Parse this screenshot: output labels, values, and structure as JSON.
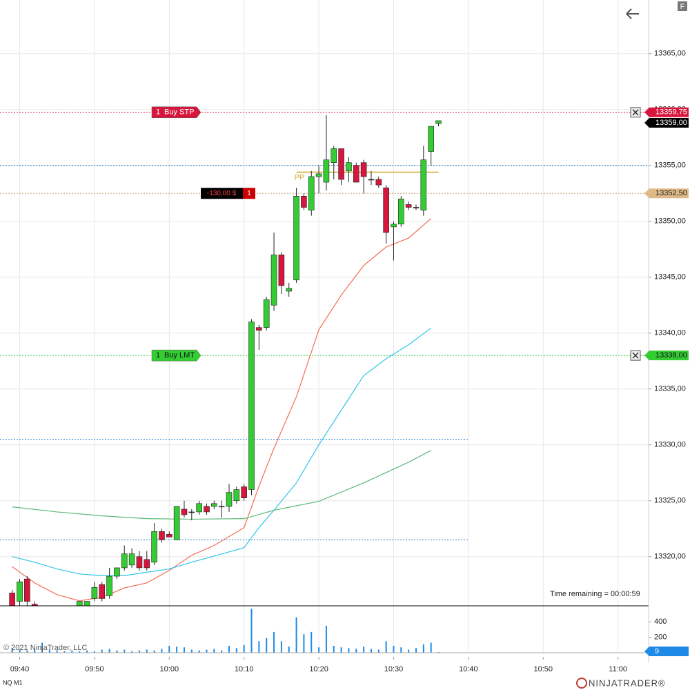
{
  "chart_data": {
    "type": "candlestick",
    "instrument": "NQ M1",
    "copyright": "© 2021 NinjaTrader, LLC",
    "time_remaining": "Time remaining = 00:00:59",
    "logo": "NINJATRADER®",
    "button": "F",
    "categories": [
      "09:39",
      "09:40",
      "09:41",
      "09:42",
      "09:43",
      "09:44",
      "09:45",
      "09:46",
      "09:47",
      "09:48",
      "09:49",
      "09:50",
      "09:51",
      "09:52",
      "09:53",
      "09:54",
      "09:55",
      "09:56",
      "09:57",
      "09:58",
      "09:59",
      "10:00",
      "10:01",
      "10:02",
      "10:03",
      "10:04",
      "10:05",
      "10:06",
      "10:07",
      "10:08",
      "10:09",
      "10:10",
      "10:11",
      "10:12",
      "10:13",
      "10:14",
      "10:15",
      "10:16",
      "10:17",
      "10:18",
      "10:19",
      "10:20",
      "10:21",
      "10:22",
      "10:23",
      "10:24",
      "10:25",
      "10:26",
      "10:27",
      "10:28",
      "10:29",
      "10:30",
      "10:31",
      "10:32",
      "10:33",
      "10:34",
      "10:35",
      "10:36"
    ],
    "open": [
      13316.75,
      13316,
      13318,
      13315.75,
      13315.25,
      13314.5,
      13314.25,
      13314,
      13314.5,
      13315.5,
      13315.5,
      13316.25,
      13317.5,
      13316.5,
      13318.25,
      13319,
      13319.25,
      13320,
      13319.75,
      13319.5,
      13322.25,
      13322,
      13321.5,
      13324.25,
      13324,
      13324,
      13324.5,
      13324.5,
      13324.5,
      13324.5,
      13325,
      13326.25,
      13326,
      13340.5,
      13340.5,
      13342.5,
      13347,
      13343.75,
      13344.75,
      13352.25,
      13351,
      13354,
      13353.5,
      13355.25,
      13356.5,
      13354.5,
      13355,
      13355.25,
      13353.75,
      13353.75,
      13353,
      13349.5,
      13349.75,
      13351.5,
      13351.25,
      13351,
      13356.25,
      13358.75
    ],
    "high": [
      13317,
      13318,
      13318.25,
      13316,
      13315.5,
      13315,
      13314.75,
      13314.75,
      13315.25,
      13316,
      13316,
      13317.75,
      13317.75,
      13319,
      13319,
      13321,
      13320.75,
      13320.5,
      13320.5,
      13323,
      13322.5,
      13322.25,
      13324.5,
      13325,
      13324.25,
      13325,
      13324.75,
      13325,
      13325,
      13326.5,
      13326.25,
      13326.5,
      13341.25,
      13340.75,
      13343.25,
      13349,
      13347.25,
      13344.5,
      13353,
      13352.5,
      13354.5,
      13355,
      13359.5,
      13356.75,
      13356.5,
      13355.75,
      13355.25,
      13355.5,
      13354.5,
      13354,
      13353.25,
      13350,
      13352.25,
      13351.75,
      13351.5,
      13356.75,
      13358.5,
      13359
    ],
    "low": [
      13315,
      13315.5,
      13315.5,
      13315,
      13314,
      13313.75,
      13313.5,
      13313.5,
      13314.25,
      13315,
      13315,
      13316,
      13316,
      13316.25,
      13318,
      13318.75,
      13319,
      13318.75,
      13318.75,
      13319.25,
      13321.25,
      13321.75,
      13321.5,
      13323.5,
      13323.25,
      13323.75,
      13323.75,
      13324.25,
      13323.5,
      13324,
      13324.75,
      13325,
      13325.5,
      13338.5,
      13340.25,
      13342,
      13343.5,
      13343.25,
      13344.5,
      13351,
      13350.5,
      13352.5,
      13352.75,
      13353.75,
      13353.25,
      13353.5,
      13353.5,
      13352.5,
      13353.25,
      13353,
      13348,
      13346.5,
      13349.5,
      13351,
      13351,
      13350.5,
      13355,
      13358.5
    ],
    "close": [
      13315.25,
      13317.75,
      13316,
      13315.5,
      13314.5,
      13314.25,
      13314,
      13314.5,
      13315,
      13316,
      13316,
      13317.25,
      13316.25,
      13318.25,
      13319,
      13320.25,
      13320.25,
      13319,
      13319,
      13322.25,
      13321.5,
      13321.75,
      13324.5,
      13323.75,
      13324,
      13324.75,
      13324,
      13324.75,
      13324.5,
      13325.75,
      13326,
      13325.25,
      13341,
      13340.25,
      13343,
      13347,
      13344.25,
      13344,
      13352.25,
      13351.25,
      13354,
      13354.25,
      13355.5,
      13356.5,
      13353.75,
      13355.25,
      13353.5,
      13354,
      13353.75,
      13353.25,
      13349,
      13349.75,
      13352,
      13351.25,
      13351.25,
      13355.5,
      13358.5,
      13359
    ],
    "up_color": "#33cc33",
    "down_color": "#d6163c",
    "xlim": [
      "09:37",
      "11:04"
    ],
    "xticks": [
      "09:40",
      "09:50",
      "10:00",
      "10:10",
      "10:20",
      "10:30",
      "10:40",
      "10:50",
      "11:00"
    ],
    "ylim": [
      13315.6,
      13369.8
    ],
    "yticks": [
      {
        "value": 13320,
        "label": "13320,00"
      },
      {
        "value": 13325,
        "label": "13325,00"
      },
      {
        "value": 13330,
        "label": "13330,00"
      },
      {
        "value": 13335,
        "label": "13335,00"
      },
      {
        "value": 13340,
        "label": "13340,00"
      },
      {
        "value": 13345,
        "label": "13345,00"
      },
      {
        "value": 13350,
        "label": "13350,00"
      },
      {
        "value": 13355,
        "label": "13355,00"
      },
      {
        "value": 13360,
        "label": "13360,00"
      },
      {
        "value": 13365,
        "label": "13365,00"
      }
    ],
    "grid": true,
    "last_price": {
      "value": 13359,
      "label": "13359,00"
    },
    "indicators": [
      {
        "color": "#f26b4f",
        "x": [
          "09:39",
          "09:42",
          "09:45",
          "09:48",
          "09:51",
          "09:54",
          "09:57",
          "10:00",
          "10:03",
          "10:06",
          "10:10",
          "10:12",
          "10:14",
          "10:17",
          "10:20",
          "10:23",
          "10:26",
          "10:29",
          "10:32",
          "10:35"
        ],
        "values": [
          13319.1,
          13317.65,
          13316.6,
          13316.05,
          13316.36,
          13317.2,
          13317.65,
          13318.77,
          13320.12,
          13321,
          13322.6,
          13326.3,
          13329.7,
          13334.3,
          13340.3,
          13343.4,
          13346.05,
          13347.7,
          13348.5,
          13350.25
        ]
      },
      {
        "color": "#2ec4ea",
        "x": [
          "09:39",
          "09:42",
          "09:45",
          "09:48",
          "09:51",
          "09:54",
          "09:57",
          "10:00",
          "10:03",
          "10:06",
          "10:10",
          "10:12",
          "10:14",
          "10:17",
          "10:20",
          "10:23",
          "10:26",
          "10:29",
          "10:32",
          "10:35"
        ],
        "values": [
          13320,
          13319.5,
          13318.9,
          13318.45,
          13318.3,
          13318.3,
          13318.6,
          13318.9,
          13319.5,
          13320.05,
          13320.8,
          13322.6,
          13324.15,
          13326.6,
          13330,
          13333.1,
          13336.2,
          13337.7,
          13338.95,
          13340.45
        ]
      },
      {
        "color": "#5cb878",
        "x": [
          "09:39",
          "09:45",
          "09:51",
          "09:57",
          "10:03",
          "10:10",
          "10:14",
          "10:20",
          "10:26",
          "10:32",
          "10:35"
        ],
        "values": [
          13324.45,
          13324,
          13323.65,
          13323.4,
          13323.35,
          13323.4,
          13324.15,
          13324.95,
          13326.6,
          13328.45,
          13329.5
        ]
      }
    ],
    "hlines": [
      {
        "value": 13355,
        "color": "#1e7fd0",
        "end": null
      },
      {
        "value": 13330.5,
        "color": "#1e7fd0",
        "end": "10:40"
      },
      {
        "value": 13321.5,
        "color": "#1e7fd0",
        "end": "10:40"
      }
    ],
    "pivot": {
      "label": "PP",
      "value": 13354.4,
      "start": "10:17",
      "end": "10:36",
      "color": "#d4a52a"
    },
    "orders": [
      {
        "qty": "1",
        "text": "Buy STP",
        "price": 13359.75,
        "price_label": "13359,75",
        "color": "#d6163c",
        "text_color": "#ffffff"
      },
      {
        "qty": "1",
        "text": "Buy LMT",
        "price": 13338,
        "price_label": "13338,00",
        "color": "#33cc33",
        "text_color": "#111111"
      }
    ],
    "position": {
      "pnl": "-130,00 $",
      "qty": "1",
      "price": 13352.5,
      "price_label": "13352,50",
      "color": "#deb887"
    },
    "volume": {
      "color": "#1e8ae6",
      "ylim": [
        0,
        591
      ],
      "yticks": [
        400,
        200
      ],
      "values": [
        60,
        40,
        30,
        50,
        130,
        40,
        30,
        20,
        30,
        20,
        30,
        20,
        40,
        50,
        30,
        40,
        20,
        30,
        40,
        30,
        50,
        90,
        80,
        70,
        40,
        30,
        40,
        50,
        30,
        90,
        60,
        100,
        570,
        150,
        190,
        270,
        150,
        80,
        460,
        240,
        270,
        70,
        350,
        90,
        70,
        60,
        50,
        80,
        50,
        40,
        150,
        90,
        70,
        40,
        60,
        110,
        130,
        9
      ]
    }
  }
}
